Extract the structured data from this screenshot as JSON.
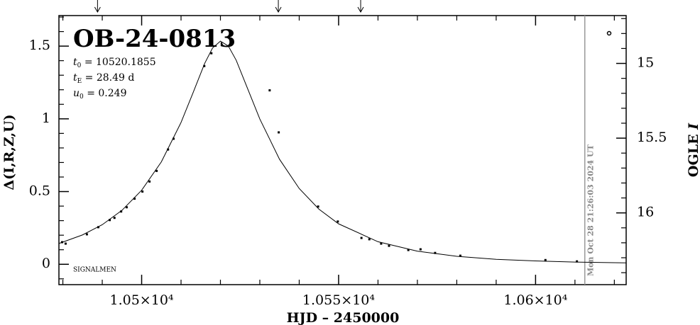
{
  "chart_data": {
    "type": "scatter",
    "title": "OB-24-0813",
    "params": [
      {
        "symbol": "t",
        "sub": "0",
        "text": " = 10520.1855"
      },
      {
        "symbol": "t",
        "sub": "E",
        "text": " = 28.49 d"
      },
      {
        "symbol": "u",
        "sub": "0",
        "text": " = 0.249"
      }
    ],
    "footnote": "SIGNALMEN",
    "xlabel": "HJD – 2450000",
    "ylabel": "Δ(I,R,Z,U)",
    "y2label": "OGLE ",
    "y2label_var": "I",
    "vline_x": 10612.5,
    "vline_label": "Mon Oct 28 21:26:03 2024 UT",
    "arrows_x": [
      10488.8,
      10534.7,
      10555.6
    ],
    "xlim": [
      10479,
      10623
    ],
    "xticks": [
      {
        "value": 10500,
        "label": "1.05×10⁴"
      },
      {
        "value": 10550,
        "label": "1.055×10⁴"
      },
      {
        "value": 10600,
        "label": "1.06×10⁴"
      }
    ],
    "xminorticks": [
      10480,
      10490,
      10510,
      10520,
      10530,
      10540,
      10560,
      10570,
      10580,
      10590,
      10610,
      10620
    ],
    "ylim": [
      -0.14,
      1.71
    ],
    "yticks": [
      0,
      0.5,
      1,
      1.5
    ],
    "yminorticks": [
      -0.1,
      0.1,
      0.2,
      0.3,
      0.4,
      0.6,
      0.7,
      0.8,
      0.9,
      1.1,
      1.2,
      1.3,
      1.4,
      1.6,
      1.7
    ],
    "y2lim": [
      16.48,
      14.68
    ],
    "y2ticks": [
      15,
      15.5,
      16
    ],
    "y2minorticks": [
      14.7,
      14.8,
      14.9,
      15.1,
      15.2,
      15.3,
      15.4,
      15.6,
      15.7,
      15.8,
      15.9,
      16.1,
      16.2,
      16.3,
      16.4
    ],
    "series": [
      {
        "color": "#000000",
        "x": [
          10479.8,
          10480.7,
          10486.1,
          10489.0,
          10491.9,
          10493.1,
          10494.8,
          10496.2,
          10498.2,
          10500.2,
          10502.0,
          10503.8,
          10506.7,
          10508.1,
          10515.9,
          10517.7,
          10532.5,
          10534.8,
          10544.8,
          10549.8,
          10555.8,
          10557.8,
          10560.8,
          10562.8,
          10567.7,
          10570.8,
          10574.5,
          10580.9,
          10602.5,
          10610.5
        ],
        "values": [
          0.152,
          0.142,
          0.206,
          0.255,
          0.304,
          0.319,
          0.363,
          0.392,
          0.451,
          0.5,
          0.569,
          0.642,
          0.789,
          0.863,
          1.363,
          1.451,
          1.196,
          0.907,
          0.397,
          0.294,
          0.181,
          0.172,
          0.142,
          0.127,
          0.098,
          0.103,
          0.078,
          0.059,
          0.029,
          0.02
        ]
      }
    ],
    "model": {
      "color": "#000000",
      "x": [
        10479,
        10485,
        10490,
        10495,
        10500,
        10505,
        10510,
        10513,
        10516,
        10518,
        10520,
        10522,
        10524,
        10527,
        10530,
        10535,
        10540,
        10545,
        10550,
        10560,
        10570,
        10580,
        10590,
        10600,
        10610,
        10620,
        10623
      ],
      "values": [
        0.143,
        0.202,
        0.272,
        0.371,
        0.509,
        0.704,
        0.975,
        1.176,
        1.381,
        1.487,
        1.534,
        1.501,
        1.403,
        1.201,
        0.999,
        0.722,
        0.521,
        0.379,
        0.278,
        0.155,
        0.09,
        0.055,
        0.034,
        0.023,
        0.015,
        0.011,
        0.01
      ]
    }
  }
}
